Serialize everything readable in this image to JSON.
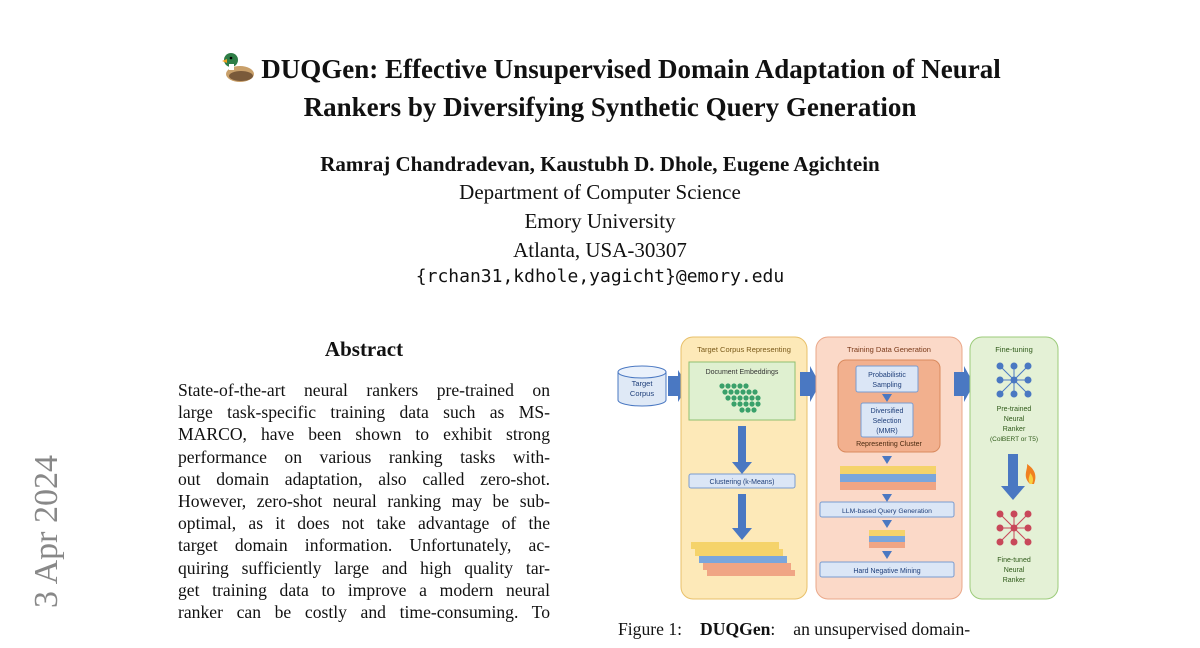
{
  "paper": {
    "title_line1": "DUQGen: Effective Unsupervised Domain Adaptation of Neural",
    "title_line2": "Rankers by Diversifying Synthetic Query Generation",
    "authors": "Ramraj Chandradevan, Kaustubh D. Dhole, Eugene Agichtein",
    "affiliation": [
      "Department of Computer Science",
      "Emory University",
      "Atlanta, USA-30307"
    ],
    "email": "{rchan31,kdhole,yagicht}@emory.edu",
    "arxiv_date": "3 Apr 2024"
  },
  "abstract": {
    "heading": "Abstract",
    "lines": [
      "State-of-the-art neural rankers pre-trained on",
      "large task-specific training data such as MS-",
      "MARCO, have been shown to exhibit strong",
      "performance on various ranking tasks with-",
      "out domain adaptation, also called zero-shot.",
      "However, zero-shot neural ranking may be sub-",
      "optimal, as it does not take advantage of the",
      "target domain information. Unfortunately, ac-",
      "quiring sufficiently large and high quality tar-",
      "get training data to improve a modern neural",
      "ranker can be costly and time-consuming. To"
    ]
  },
  "figure": {
    "caption_label": "Figure 1:",
    "caption_bold": "DUQGen",
    "caption_rest": "an unsupervised domain-",
    "target_corpus": [
      "Target",
      "Corpus"
    ],
    "panel1": {
      "title": "Target Corpus Representing",
      "doc_embeddings": "Document Embeddings",
      "clustering": "Clustering (k-Means)"
    },
    "panel2": {
      "title": "Training Data Generation",
      "probabilistic": [
        "Probabilistic",
        "Sampling"
      ],
      "diversified": [
        "Diversified",
        "Selection",
        "(MMR)"
      ],
      "representing": "Representing Cluster",
      "llm": "LLM-based Query Generation",
      "hard_negative": "Hard Negative Mining"
    },
    "panel3": {
      "title": "Fine-tuning",
      "pretrained": [
        "Pre-trained",
        "Neural",
        "Ranker",
        "(ColBERT or T5)"
      ],
      "finetuned": [
        "Fine-tuned",
        "Neural",
        "Ranker"
      ]
    },
    "colors": {
      "panel1_fill": "#fde9b8",
      "panel2_fill": "#fbd9c8",
      "panel3_fill": "#e4f1d6",
      "arrow_blue": "#4a78c2"
    }
  }
}
